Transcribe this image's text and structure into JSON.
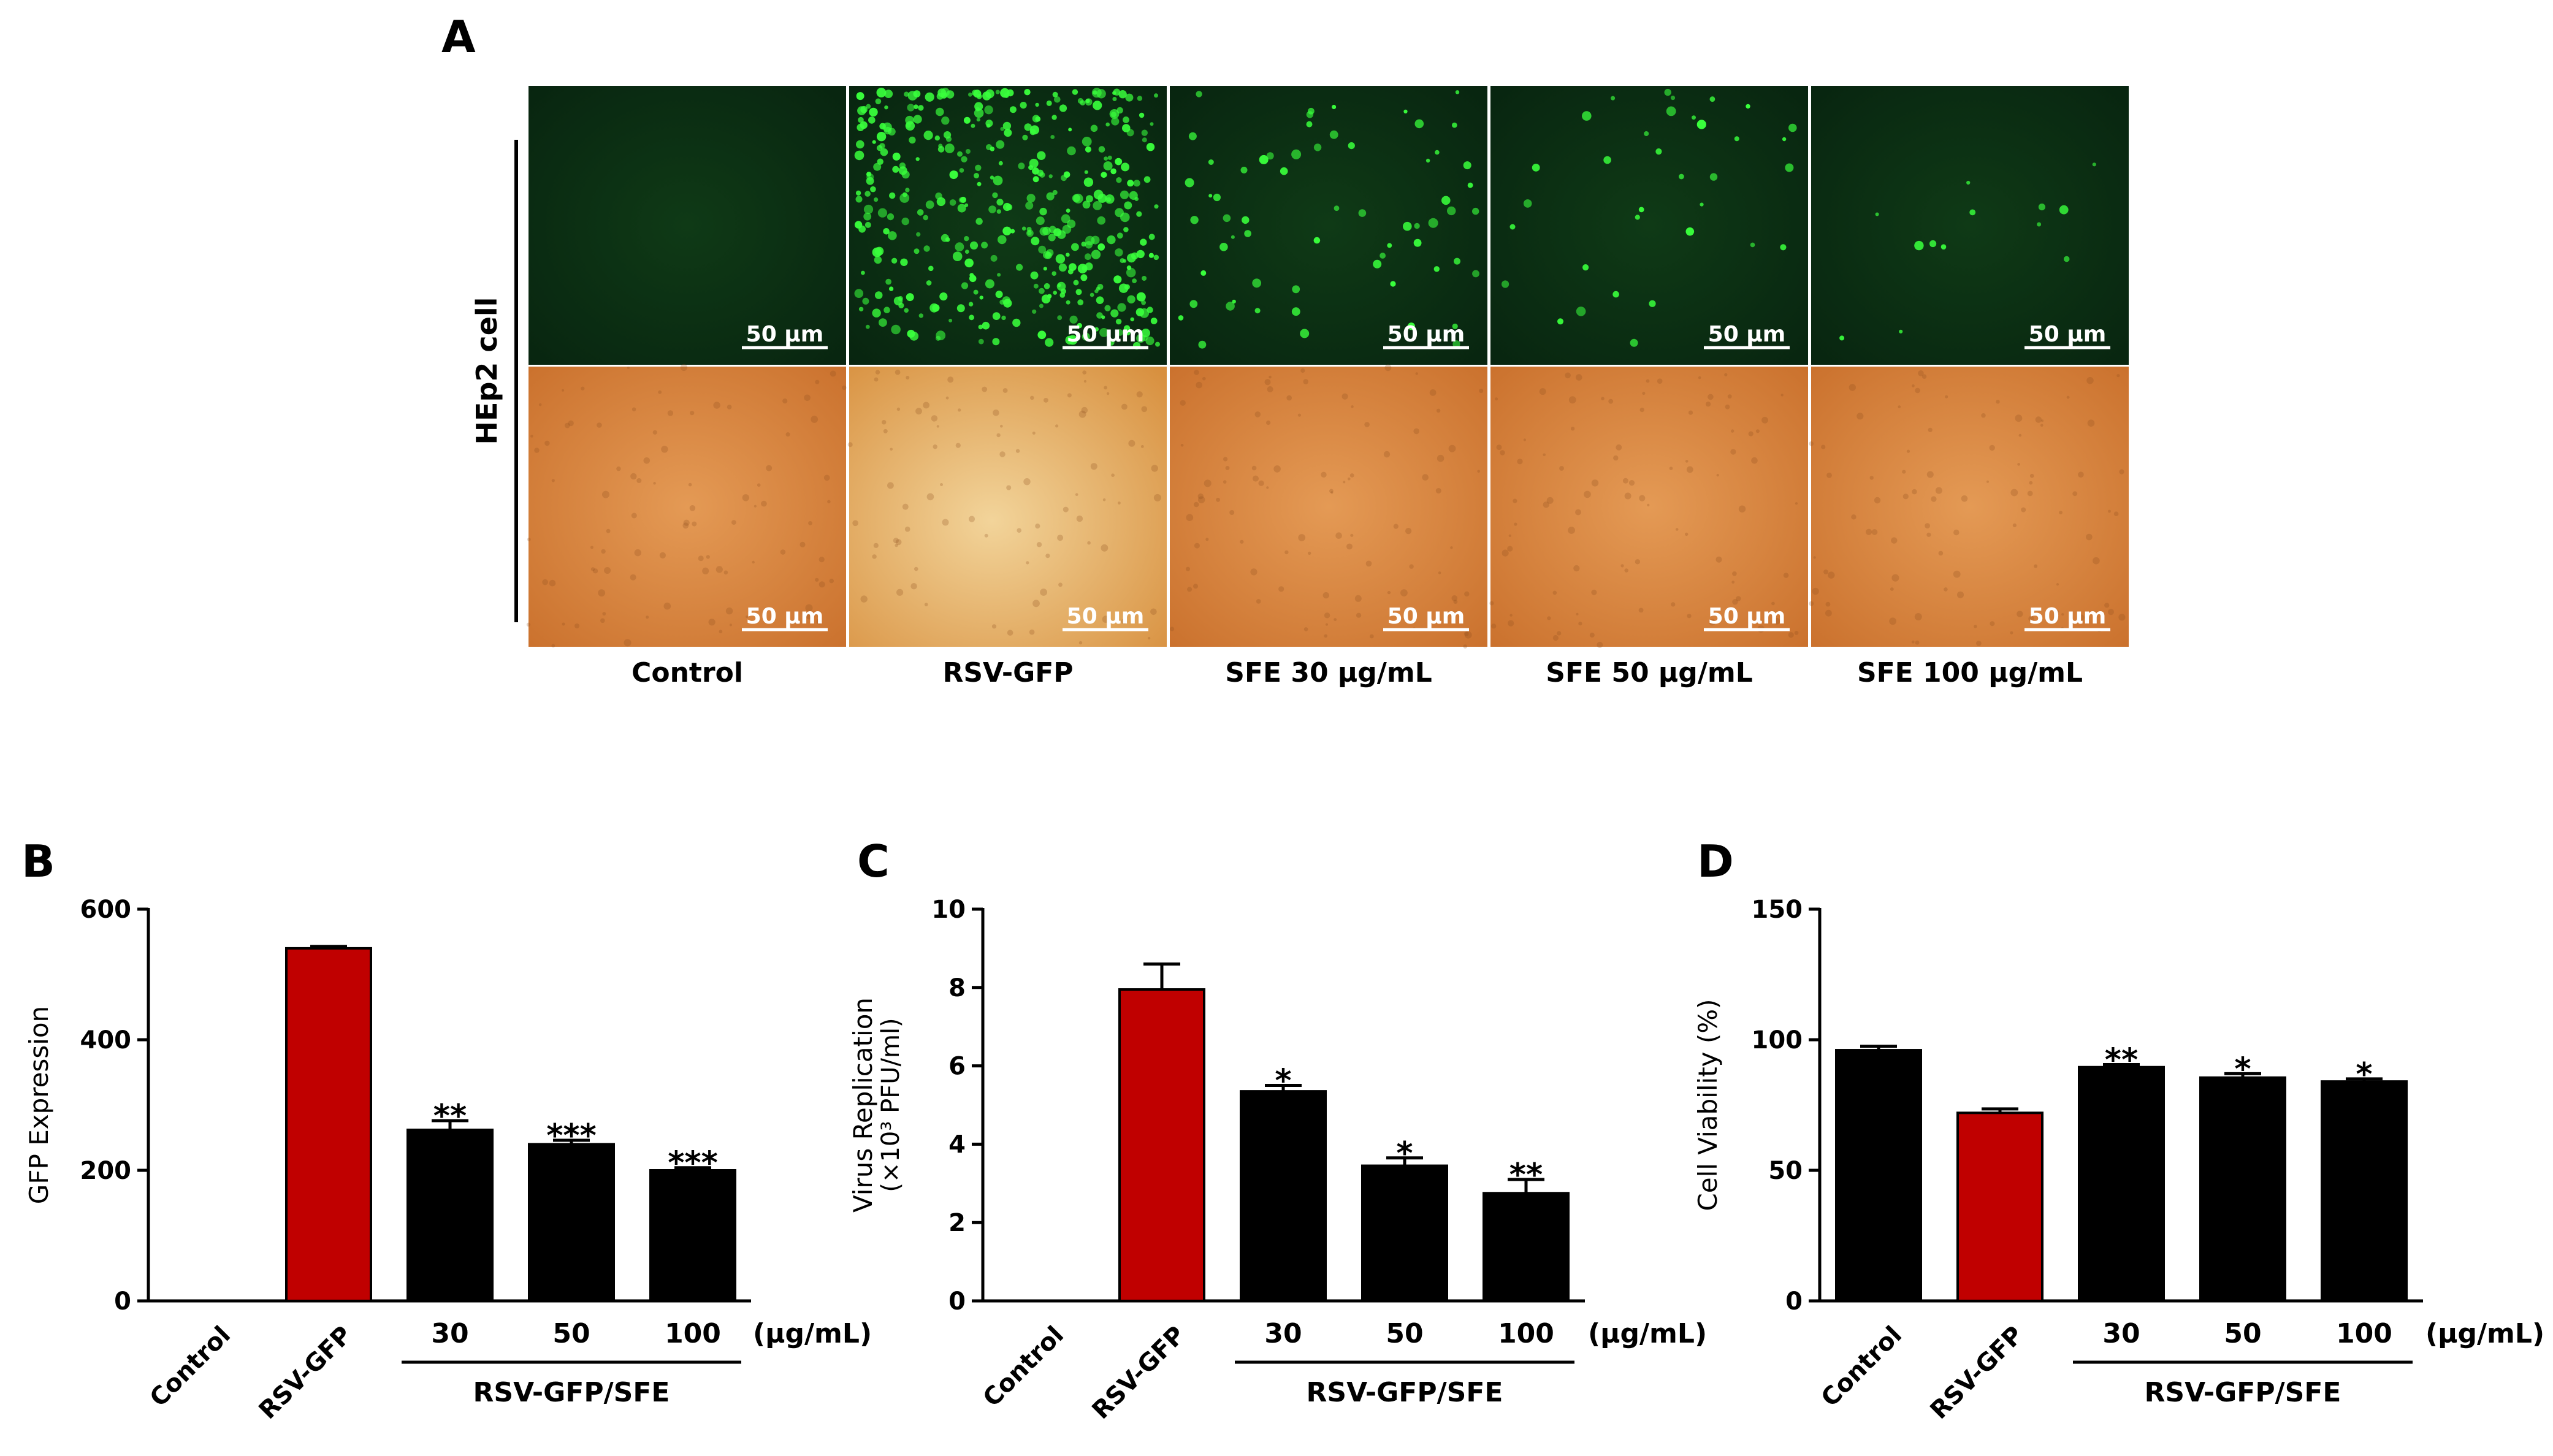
{
  "panel_a": {
    "label": "A",
    "side_label": "HEp2 cell",
    "scale_bar": "50 μm",
    "columns": [
      "Control",
      "RSV-GFP",
      "SFE 30 μg/mL",
      "SFE 50 μg/mL",
      "SFE 100 μg/mL"
    ],
    "gfp_density": [
      0,
      1,
      0.15,
      0.08,
      0.03
    ],
    "colors": {
      "fluorescence_bg": "#0a2a0f",
      "gfp": "#39ff3c",
      "brightfield": "#d9823a"
    }
  },
  "chart_data": [
    {
      "panel": "B",
      "type": "bar",
      "categories": [
        "Control",
        "RSV-GFP",
        "30",
        "50",
        "100"
      ],
      "values": [
        0,
        540,
        262,
        240,
        200
      ],
      "errors": [
        0,
        3,
        14,
        6,
        4
      ],
      "significance": [
        "",
        "",
        "**",
        "***",
        "***"
      ],
      "ylabel": "GFP Expression",
      "ylim": [
        0,
        600
      ],
      "yticks": [
        0,
        200,
        400,
        600
      ],
      "unit_label": "(μg/mL)",
      "group_label": "RSV-GFP/SFE",
      "bar_colors": [
        "#000000",
        "#c00000",
        "#000000",
        "#000000",
        "#000000"
      ],
      "grid": false
    },
    {
      "panel": "C",
      "type": "bar",
      "categories": [
        "Control",
        "RSV-GFP",
        "30",
        "50",
        "100"
      ],
      "values": [
        0,
        7.95,
        5.35,
        3.45,
        2.75
      ],
      "errors": [
        0,
        0.65,
        0.15,
        0.2,
        0.35
      ],
      "significance": [
        "",
        "",
        "*",
        "*",
        "**"
      ],
      "ylabel": "Virus Replication",
      "ylabel2": "(×10³ PFU/ml)",
      "ylim": [
        0,
        10
      ],
      "yticks": [
        0,
        2,
        4,
        6,
        8,
        10
      ],
      "unit_label": "(μg/mL)",
      "group_label": "RSV-GFP/SFE",
      "bar_colors": [
        "#000000",
        "#c00000",
        "#000000",
        "#000000",
        "#000000"
      ],
      "grid": false
    },
    {
      "panel": "D",
      "type": "bar",
      "categories": [
        "Control",
        "RSV-GFP",
        "30",
        "50",
        "100"
      ],
      "values": [
        96,
        72,
        89.5,
        85.5,
        84
      ],
      "errors": [
        1.5,
        1.5,
        1,
        1.5,
        1
      ],
      "significance": [
        "",
        "",
        "**",
        "*",
        "*"
      ],
      "ylabel": "Cell Viability (%)",
      "ylim": [
        0,
        150
      ],
      "yticks": [
        0,
        50,
        100,
        150
      ],
      "unit_label": "(μg/mL)",
      "group_label": "RSV-GFP/SFE",
      "bar_colors": [
        "#000000",
        "#c00000",
        "#000000",
        "#000000",
        "#000000"
      ],
      "grid": false
    }
  ]
}
